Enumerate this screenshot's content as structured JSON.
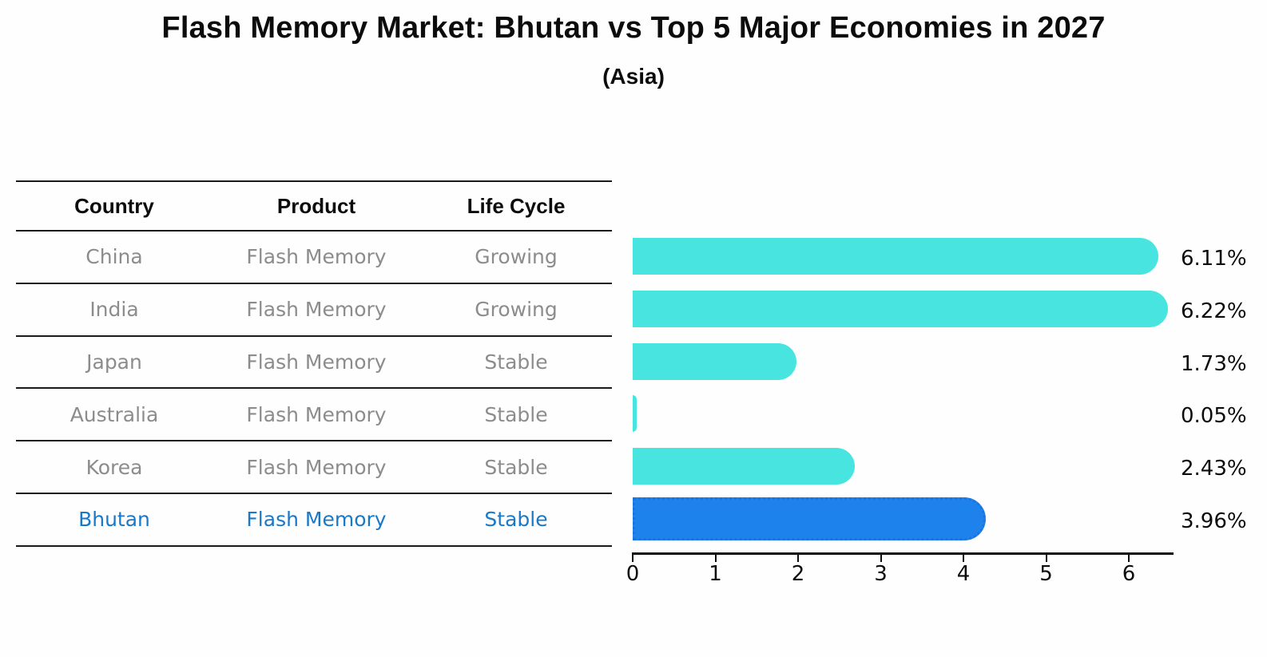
{
  "title": "Flash Memory Market: Bhutan vs Top 5 Major Economies in 2027",
  "subtitle": "(Asia)",
  "table": {
    "headers": [
      "Country",
      "Product",
      "Life Cycle"
    ],
    "rows": [
      {
        "country": "China",
        "product": "Flash Memory",
        "life_cycle": "Growing"
      },
      {
        "country": "India",
        "product": "Flash Memory",
        "life_cycle": "Growing"
      },
      {
        "country": "Japan",
        "product": "Flash Memory",
        "life_cycle": "Stable"
      },
      {
        "country": "Australia",
        "product": "Flash Memory",
        "life_cycle": "Stable"
      },
      {
        "country": "Korea",
        "product": "Flash Memory",
        "life_cycle": "Stable"
      },
      {
        "country": "Bhutan",
        "product": "Flash Memory",
        "life_cycle": "Stable"
      }
    ],
    "highlight_row": "Bhutan"
  },
  "chart_data": {
    "type": "bar",
    "orientation": "horizontal",
    "categories": [
      "China",
      "India",
      "Japan",
      "Australia",
      "Korea",
      "Bhutan"
    ],
    "values": [
      6.11,
      6.22,
      1.73,
      0.05,
      2.43,
      3.96
    ],
    "value_labels": [
      "6.11%",
      "6.22%",
      "1.73%",
      "0.05%",
      "2.43%",
      "3.96%"
    ],
    "x_ticks": [
      "0",
      "1",
      "2",
      "3",
      "4",
      "5",
      "6"
    ],
    "xlim": [
      0,
      6.53
    ],
    "grid": false,
    "legend": false,
    "bar_color": "#48e5e0",
    "highlight_bar_color": "#1e82ec",
    "highlight_index": 5
  },
  "colors": {
    "table_text": "#8c8c8c",
    "highlight_text": "#1a78c8",
    "header_text": "#0c0c0c",
    "axis": "#0f0f0f"
  }
}
